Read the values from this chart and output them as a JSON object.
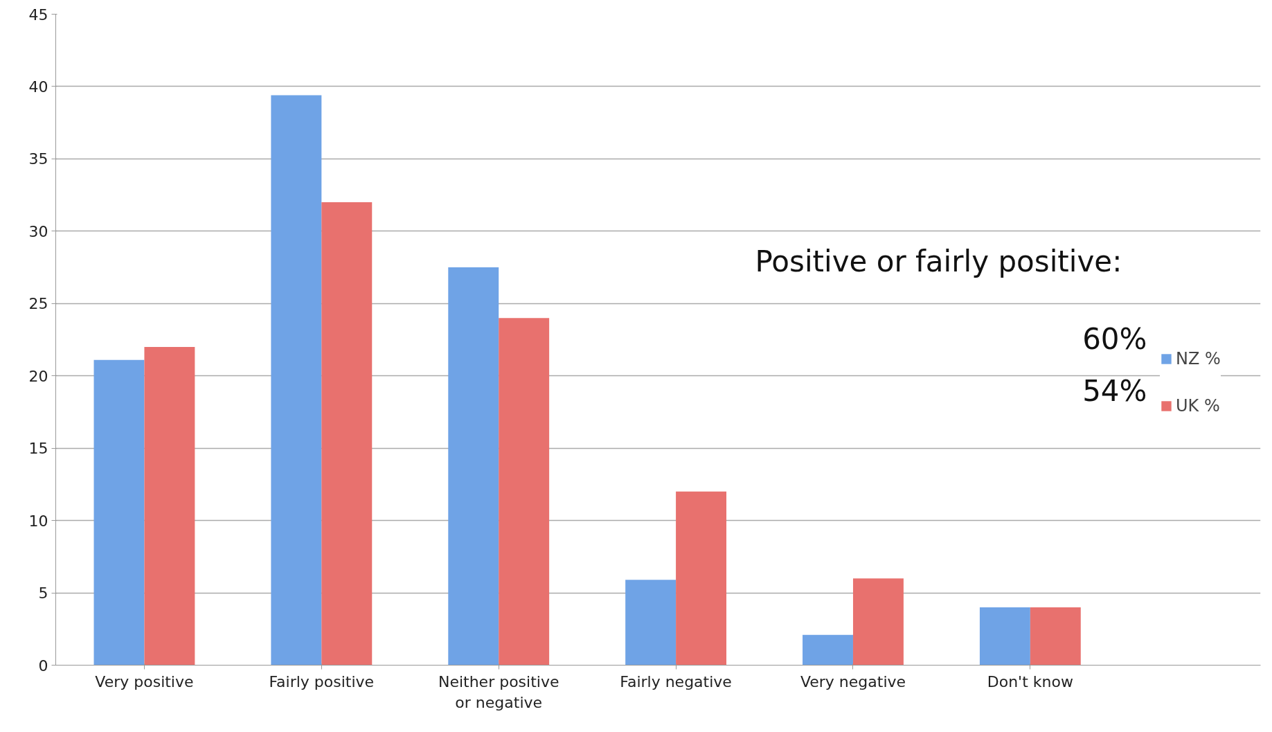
{
  "chart_data": {
    "type": "bar",
    "categories": [
      "Very positive",
      "Fairly positive",
      "Neither positive or negative",
      "Fairly negative",
      "Very negative",
      "Don't know"
    ],
    "series": [
      {
        "name": "NZ %",
        "color": "#6fa3e6",
        "values": [
          21.1,
          39.4,
          27.5,
          5.9,
          2.1,
          4.0
        ]
      },
      {
        "name": "UK %",
        "color": "#e8716e",
        "values": [
          22.0,
          32.0,
          24.0,
          12.0,
          6.0,
          4.0
        ]
      }
    ],
    "ylim": [
      0,
      45
    ],
    "yticks": [
      0,
      5,
      10,
      15,
      20,
      25,
      30,
      35,
      40,
      45
    ],
    "grid": "y",
    "legend": "right",
    "annotations": [
      "Positive or fairly positive:",
      "60%",
      "54%"
    ]
  }
}
